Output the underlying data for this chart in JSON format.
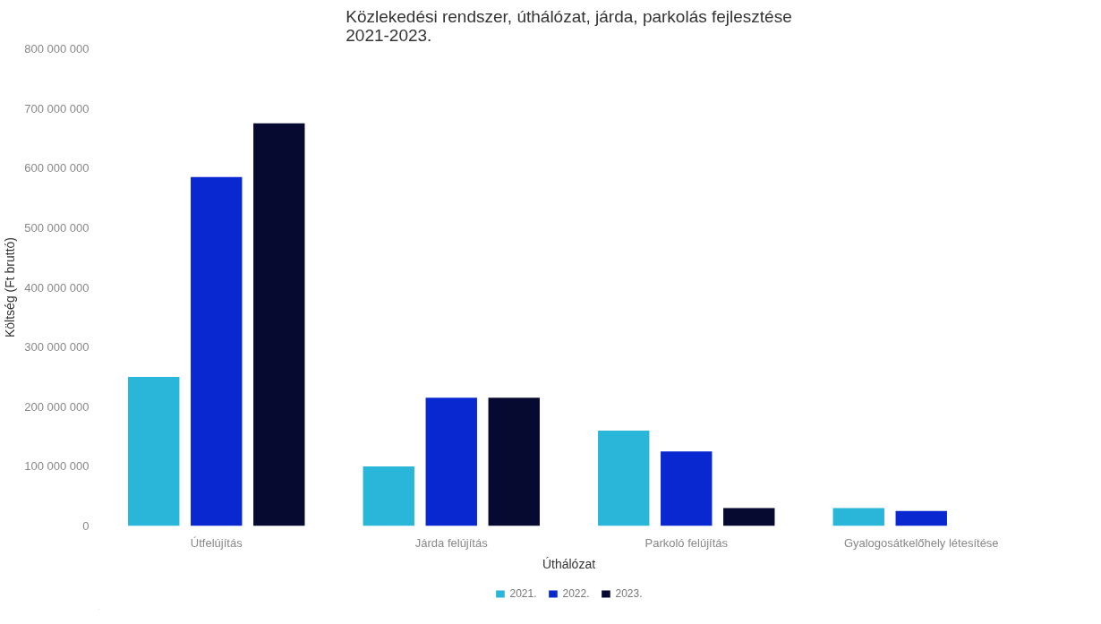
{
  "chart_data": {
    "type": "bar",
    "title": "Közlekedési rendszer, úthálózat, járda, parkolás fejlesztése\n2021-2023.",
    "xlabel": "Úthálózat",
    "ylabel": "Költség (Ft bruttó)",
    "categories": [
      "Útfelújítás",
      "Járda felújítás",
      "Parkoló felújítás",
      "Gyalogosátkelőhely létesítése"
    ],
    "series": [
      {
        "name": "2021.",
        "color": "#29b6d8",
        "values": [
          250000000,
          100000000,
          160000000,
          30000000
        ]
      },
      {
        "name": "2022.",
        "color": "#0a28d0",
        "values": [
          585000000,
          215000000,
          125000000,
          25000000
        ]
      },
      {
        "name": "2023.",
        "color": "#060a30",
        "values": [
          675000000,
          215000000,
          30000000,
          null
        ]
      }
    ],
    "ylim": [
      0,
      800000000
    ],
    "yticks": [
      {
        "value": 0,
        "label": "0"
      },
      {
        "value": 100000000,
        "label": "100 000 000"
      },
      {
        "value": 200000000,
        "label": "200 000 000"
      },
      {
        "value": 300000000,
        "label": "300 000 000"
      },
      {
        "value": 400000000,
        "label": "400 000 000"
      },
      {
        "value": 500000000,
        "label": "500 000 000"
      },
      {
        "value": 600000000,
        "label": "600 000 000"
      },
      {
        "value": 700000000,
        "label": "700 000 000"
      },
      {
        "value": 800000000,
        "label": "800 000 000"
      }
    ],
    "grid": false,
    "legend": "bottom"
  }
}
